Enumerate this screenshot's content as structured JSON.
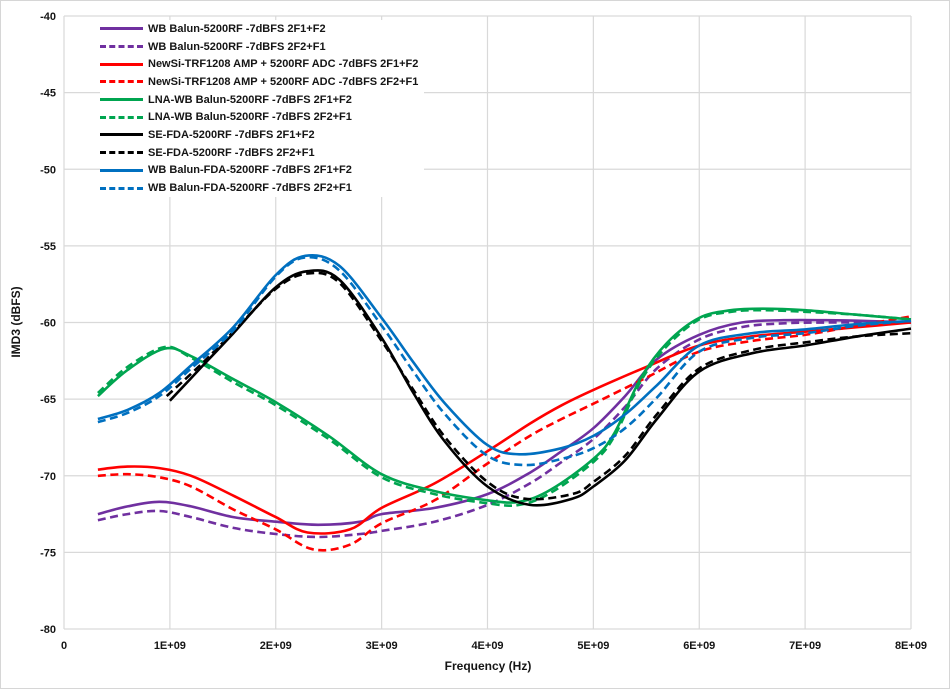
{
  "figure": {
    "background": "#ffffff",
    "border_color": "#d6d6d6"
  },
  "chart_data": {
    "type": "line",
    "title": "",
    "xlabel": "Frequency (Hz)",
    "ylabel": "IMD3 (dBFS)",
    "x_unit": "GHz",
    "xlim": [
      0,
      8
    ],
    "ylim": [
      -80,
      -40
    ],
    "grid": true,
    "grid_color": "#d9d9d9",
    "legend_position": "top-left-inside",
    "x_ticks": [
      {
        "v": 0,
        "label": "0"
      },
      {
        "v": 1,
        "label": "1E+09"
      },
      {
        "v": 2,
        "label": "2E+09"
      },
      {
        "v": 3,
        "label": "3E+09"
      },
      {
        "v": 4,
        "label": "4E+09"
      },
      {
        "v": 5,
        "label": "5E+09"
      },
      {
        "v": 6,
        "label": "6E+09"
      },
      {
        "v": 7,
        "label": "7E+09"
      },
      {
        "v": 8,
        "label": "8E+09"
      }
    ],
    "y_ticks": [
      {
        "v": -40,
        "label": "-40"
      },
      {
        "v": -45,
        "label": "-45"
      },
      {
        "v": -50,
        "label": "-50"
      },
      {
        "v": -55,
        "label": "-55"
      },
      {
        "v": -60,
        "label": "-60"
      },
      {
        "v": -65,
        "label": "-65"
      },
      {
        "v": -70,
        "label": "-70"
      },
      {
        "v": -75,
        "label": "-75"
      },
      {
        "v": -80,
        "label": "-80"
      }
    ],
    "series": [
      {
        "name": "WB Balun-5200RF  -7dBFS 2F1+F2",
        "color": "#7030A0",
        "style": "solid",
        "points": [
          [
            0.32,
            -72.5
          ],
          [
            0.6,
            -72.0
          ],
          [
            0.9,
            -71.7
          ],
          [
            1.2,
            -72.0
          ],
          [
            1.6,
            -72.7
          ],
          [
            2.0,
            -73.0
          ],
          [
            2.4,
            -73.2
          ],
          [
            2.8,
            -73.0
          ],
          [
            3.0,
            -72.5
          ],
          [
            3.5,
            -72.1
          ],
          [
            4.0,
            -71.2
          ],
          [
            4.4,
            -69.8
          ],
          [
            4.7,
            -68.4
          ],
          [
            5.0,
            -66.9
          ],
          [
            5.3,
            -64.8
          ],
          [
            5.6,
            -62.4
          ],
          [
            6.0,
            -60.8
          ],
          [
            6.4,
            -60.0
          ],
          [
            6.8,
            -59.85
          ],
          [
            7.2,
            -59.85
          ],
          [
            7.6,
            -59.9
          ],
          [
            8.0,
            -60.0
          ]
        ]
      },
      {
        "name": "WB Balun-5200RF  -7dBFS 2F2+F1",
        "color": "#7030A0",
        "style": "dashed",
        "points": [
          [
            0.32,
            -72.9
          ],
          [
            0.6,
            -72.5
          ],
          [
            0.9,
            -72.3
          ],
          [
            1.2,
            -72.7
          ],
          [
            1.6,
            -73.4
          ],
          [
            2.0,
            -73.8
          ],
          [
            2.4,
            -74.0
          ],
          [
            2.8,
            -73.8
          ],
          [
            3.0,
            -73.6
          ],
          [
            3.5,
            -73.0
          ],
          [
            4.0,
            -71.9
          ],
          [
            4.4,
            -70.5
          ],
          [
            4.7,
            -69.1
          ],
          [
            5.0,
            -67.6
          ],
          [
            5.3,
            -65.5
          ],
          [
            5.6,
            -63.0
          ],
          [
            6.0,
            -61.1
          ],
          [
            6.4,
            -60.3
          ],
          [
            6.8,
            -60.05
          ],
          [
            7.2,
            -60.0
          ],
          [
            7.6,
            -60.0
          ],
          [
            8.0,
            -60.0
          ]
        ]
      },
      {
        "name": "NewSi-TRF1208 AMP + 5200RF ADC  -7dBFS 2F1+F2",
        "color": "#FF0000",
        "style": "solid",
        "points": [
          [
            0.32,
            -69.6
          ],
          [
            0.6,
            -69.4
          ],
          [
            0.9,
            -69.5
          ],
          [
            1.2,
            -70.0
          ],
          [
            1.6,
            -71.3
          ],
          [
            2.0,
            -72.7
          ],
          [
            2.3,
            -73.7
          ],
          [
            2.7,
            -73.5
          ],
          [
            3.0,
            -72.1
          ],
          [
            3.5,
            -70.5
          ],
          [
            4.0,
            -68.4
          ],
          [
            4.4,
            -66.6
          ],
          [
            4.7,
            -65.4
          ],
          [
            5.0,
            -64.4
          ],
          [
            5.5,
            -62.9
          ],
          [
            6.0,
            -61.5
          ],
          [
            6.5,
            -60.9
          ],
          [
            7.0,
            -60.6
          ],
          [
            7.5,
            -60.3
          ],
          [
            8.0,
            -60.0
          ]
        ]
      },
      {
        "name": "NewSi-TRF1208 AMP + 5200RF ADC  -7dBFS 2F2+F1",
        "color": "#FF0000",
        "style": "dashed",
        "points": [
          [
            0.32,
            -70.0
          ],
          [
            0.6,
            -69.9
          ],
          [
            0.9,
            -70.1
          ],
          [
            1.2,
            -70.7
          ],
          [
            1.6,
            -72.2
          ],
          [
            2.0,
            -73.5
          ],
          [
            2.35,
            -74.8
          ],
          [
            2.7,
            -74.5
          ],
          [
            3.0,
            -73.1
          ],
          [
            3.5,
            -71.6
          ],
          [
            4.0,
            -69.2
          ],
          [
            4.4,
            -67.4
          ],
          [
            4.7,
            -66.3
          ],
          [
            5.0,
            -65.3
          ],
          [
            5.5,
            -63.6
          ],
          [
            6.0,
            -61.9
          ],
          [
            6.5,
            -61.2
          ],
          [
            7.0,
            -60.8
          ],
          [
            7.5,
            -60.2
          ],
          [
            8.0,
            -59.6
          ]
        ]
      },
      {
        "name": "LNA-WB Balun-5200RF  -7dBFS 2F1+F2",
        "color": "#00A550",
        "style": "solid",
        "points": [
          [
            0.32,
            -64.8
          ],
          [
            0.6,
            -63.1
          ],
          [
            0.95,
            -61.7
          ],
          [
            1.2,
            -62.2
          ],
          [
            1.6,
            -63.7
          ],
          [
            2.0,
            -65.2
          ],
          [
            2.5,
            -67.4
          ],
          [
            3.0,
            -69.9
          ],
          [
            3.5,
            -71.0
          ],
          [
            4.0,
            -71.6
          ],
          [
            4.3,
            -71.7
          ],
          [
            4.6,
            -70.9
          ],
          [
            5.0,
            -68.9
          ],
          [
            5.2,
            -67.2
          ],
          [
            5.45,
            -63.6
          ],
          [
            5.7,
            -61.3
          ],
          [
            6.0,
            -59.7
          ],
          [
            6.3,
            -59.2
          ],
          [
            6.6,
            -59.1
          ],
          [
            7.0,
            -59.2
          ],
          [
            7.5,
            -59.5
          ],
          [
            8.0,
            -59.8
          ]
        ]
      },
      {
        "name": "LNA-WB Balun-5200RF  -7dBFS 2F2+F1",
        "color": "#00A550",
        "style": "dashed",
        "points": [
          [
            0.32,
            -64.6
          ],
          [
            0.6,
            -62.9
          ],
          [
            0.95,
            -61.6
          ],
          [
            1.2,
            -62.3
          ],
          [
            1.6,
            -63.9
          ],
          [
            2.0,
            -65.4
          ],
          [
            2.5,
            -67.6
          ],
          [
            3.0,
            -70.1
          ],
          [
            3.5,
            -71.2
          ],
          [
            4.0,
            -71.8
          ],
          [
            4.3,
            -71.9
          ],
          [
            4.6,
            -71.1
          ],
          [
            5.0,
            -69.1
          ],
          [
            5.2,
            -67.4
          ],
          [
            5.45,
            -63.8
          ],
          [
            5.7,
            -61.5
          ],
          [
            6.0,
            -59.8
          ],
          [
            6.3,
            -59.3
          ],
          [
            6.6,
            -59.2
          ],
          [
            7.0,
            -59.3
          ],
          [
            7.5,
            -59.5
          ],
          [
            8.0,
            -59.8
          ]
        ]
      },
      {
        "name": "SE-FDA-5200RF  -7dBFS 2F1+F2",
        "color": "#000000",
        "style": "solid",
        "points": [
          [
            1.0,
            -65.1
          ],
          [
            1.3,
            -62.9
          ],
          [
            1.6,
            -60.7
          ],
          [
            2.0,
            -57.7
          ],
          [
            2.3,
            -56.65
          ],
          [
            2.6,
            -57.2
          ],
          [
            3.0,
            -61.0
          ],
          [
            3.3,
            -64.6
          ],
          [
            3.6,
            -67.8
          ],
          [
            4.0,
            -70.7
          ],
          [
            4.4,
            -71.9
          ],
          [
            4.8,
            -71.5
          ],
          [
            5.0,
            -70.7
          ],
          [
            5.3,
            -69.0
          ],
          [
            5.6,
            -66.3
          ],
          [
            6.0,
            -63.2
          ],
          [
            6.5,
            -62.0
          ],
          [
            7.0,
            -61.5
          ],
          [
            7.5,
            -60.9
          ],
          [
            8.0,
            -60.4
          ]
        ]
      },
      {
        "name": "SE-FDA-5200RF  -7dBFS 2F2+F1",
        "color": "#000000",
        "style": "dashed",
        "points": [
          [
            0.97,
            -64.8
          ],
          [
            1.3,
            -62.7
          ],
          [
            1.6,
            -60.6
          ],
          [
            2.0,
            -57.8
          ],
          [
            2.3,
            -56.8
          ],
          [
            2.6,
            -57.4
          ],
          [
            3.0,
            -61.2
          ],
          [
            3.3,
            -64.4
          ],
          [
            3.6,
            -67.5
          ],
          [
            4.0,
            -70.4
          ],
          [
            4.35,
            -71.5
          ],
          [
            4.8,
            -71.2
          ],
          [
            5.0,
            -70.4
          ],
          [
            5.3,
            -68.7
          ],
          [
            5.6,
            -66.0
          ],
          [
            6.0,
            -63.0
          ],
          [
            6.5,
            -61.8
          ],
          [
            7.0,
            -61.3
          ],
          [
            7.5,
            -60.9
          ],
          [
            8.0,
            -60.7
          ]
        ]
      },
      {
        "name": "WB Balun-FDA-5200RF  -7dBFS 2F1+F2",
        "color": "#0070C0",
        "style": "solid",
        "points": [
          [
            0.32,
            -66.3
          ],
          [
            0.6,
            -65.7
          ],
          [
            0.9,
            -64.6
          ],
          [
            1.2,
            -62.8
          ],
          [
            1.6,
            -60.3
          ],
          [
            2.0,
            -56.9
          ],
          [
            2.28,
            -55.65
          ],
          [
            2.6,
            -56.3
          ],
          [
            3.0,
            -59.7
          ],
          [
            3.3,
            -62.6
          ],
          [
            3.6,
            -65.3
          ],
          [
            4.0,
            -68.0
          ],
          [
            4.3,
            -68.6
          ],
          [
            4.7,
            -68.2
          ],
          [
            5.0,
            -67.4
          ],
          [
            5.3,
            -66.0
          ],
          [
            5.6,
            -64.1
          ],
          [
            6.0,
            -61.5
          ],
          [
            6.5,
            -60.7
          ],
          [
            7.0,
            -60.45
          ],
          [
            7.5,
            -60.1
          ],
          [
            8.0,
            -59.9
          ]
        ]
      },
      {
        "name": "WB Balun-FDA-5200RF  -7dBFS 2F2+F1",
        "color": "#0070C0",
        "style": "dashed",
        "points": [
          [
            0.32,
            -66.5
          ],
          [
            0.6,
            -65.9
          ],
          [
            0.9,
            -64.8
          ],
          [
            1.2,
            -63.0
          ],
          [
            1.6,
            -60.5
          ],
          [
            2.0,
            -57.0
          ],
          [
            2.28,
            -55.75
          ],
          [
            2.6,
            -56.6
          ],
          [
            3.0,
            -60.2
          ],
          [
            3.3,
            -63.2
          ],
          [
            3.6,
            -66.0
          ],
          [
            4.0,
            -68.7
          ],
          [
            4.35,
            -69.3
          ],
          [
            4.7,
            -68.9
          ],
          [
            5.0,
            -68.2
          ],
          [
            5.3,
            -66.9
          ],
          [
            5.6,
            -64.9
          ],
          [
            6.0,
            -61.9
          ],
          [
            6.5,
            -61.0
          ],
          [
            7.0,
            -60.7
          ],
          [
            7.5,
            -60.2
          ],
          [
            8.0,
            -59.9
          ]
        ]
      }
    ]
  }
}
